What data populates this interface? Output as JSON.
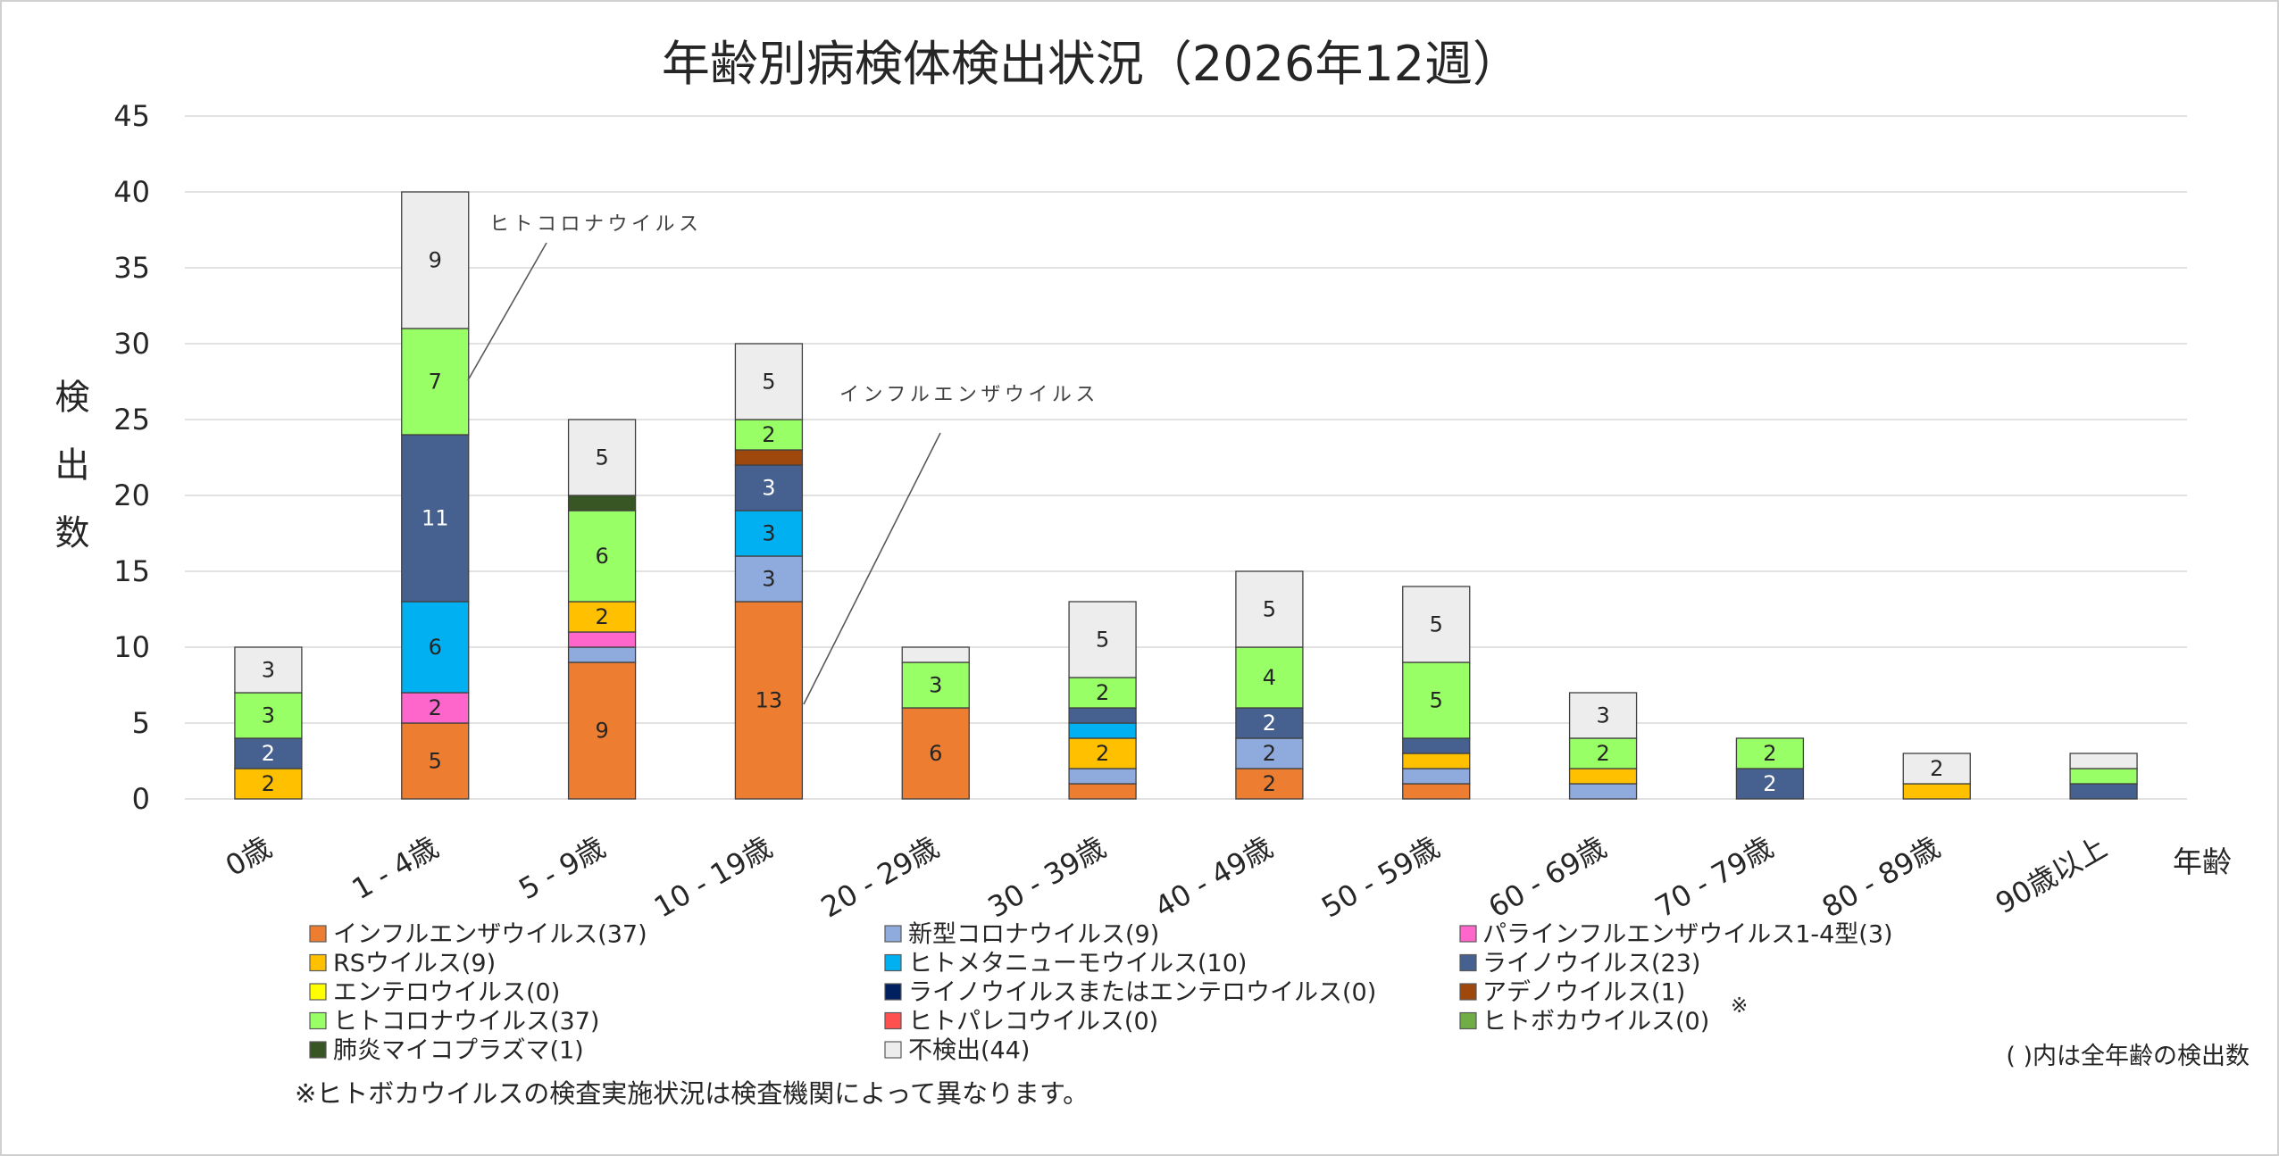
{
  "chart_data": {
    "type": "bar",
    "stacked": true,
    "title": "年齢別病検体検出状況（2026年12週）",
    "xlabel": "年齢",
    "ylabel": "検出数",
    "ylim": [
      0,
      45
    ],
    "yticks": [
      0,
      5,
      10,
      15,
      20,
      25,
      30,
      35,
      40,
      45
    ],
    "grid": true,
    "legend_position": "bottom",
    "categories": [
      "0歳",
      "1 - 4歳",
      "5 - 9歳",
      "10 - 19歳",
      "20 - 29歳",
      "30 - 39歳",
      "40 - 49歳",
      "50 - 59歳",
      "60 - 69歳",
      "70 - 79歳",
      "80 - 89歳",
      "90歳以上"
    ],
    "series": [
      {
        "name": "インフルエンザウイルス(37)",
        "color": "#ED7D31",
        "values": [
          0,
          5,
          9,
          13,
          6,
          1,
          2,
          1,
          0,
          0,
          0,
          0
        ]
      },
      {
        "name": "新型コロナウイルス(9)",
        "color": "#8FAADC",
        "values": [
          0,
          0,
          1,
          3,
          0,
          1,
          2,
          1,
          1,
          0,
          0,
          0
        ]
      },
      {
        "name": "パラインフルエンザウイルス1-4型(3)",
        "color": "#FF66CC",
        "values": [
          0,
          2,
          1,
          0,
          0,
          0,
          0,
          0,
          0,
          0,
          0,
          0
        ]
      },
      {
        "name": "RSウイルス(9)",
        "color": "#FFC000",
        "values": [
          2,
          0,
          2,
          0,
          0,
          2,
          0,
          1,
          1,
          0,
          1,
          0
        ]
      },
      {
        "name": "ヒトメタニューモウイルス(10)",
        "color": "#00B0F0",
        "values": [
          0,
          6,
          0,
          3,
          0,
          1,
          0,
          0,
          0,
          0,
          0,
          0
        ]
      },
      {
        "name": "ライノウイルス(23)",
        "color": "#46608F",
        "values": [
          2,
          11,
          0,
          3,
          0,
          1,
          2,
          1,
          0,
          2,
          0,
          1
        ]
      },
      {
        "name": "エンテロウイルス(0)",
        "color": "#FFFF00",
        "values": [
          0,
          0,
          0,
          0,
          0,
          0,
          0,
          0,
          0,
          0,
          0,
          0
        ]
      },
      {
        "name": "ライノウイルスまたはエンテロウイルス(0)",
        "color": "#002060",
        "values": [
          0,
          0,
          0,
          0,
          0,
          0,
          0,
          0,
          0,
          0,
          0,
          0
        ]
      },
      {
        "name": "アデノウイルス(1)",
        "color": "#9E480E",
        "values": [
          0,
          0,
          0,
          1,
          0,
          0,
          0,
          0,
          0,
          0,
          0,
          0
        ]
      },
      {
        "name": "ヒトコロナウイルス(37)",
        "color": "#99FF66",
        "values": [
          3,
          7,
          6,
          2,
          3,
          2,
          4,
          5,
          2,
          2,
          0,
          1
        ]
      },
      {
        "name": "ヒトパレコウイルス(0)",
        "color": "#FF5050",
        "values": [
          0,
          0,
          0,
          0,
          0,
          0,
          0,
          0,
          0,
          0,
          0,
          0
        ]
      },
      {
        "name": "ヒトボカウイルス(0)",
        "color": "#70AD47",
        "values": [
          0,
          0,
          0,
          0,
          0,
          0,
          0,
          0,
          0,
          0,
          0,
          0
        ]
      },
      {
        "name": "肺炎マイコプラズマ(1)",
        "color": "#375623",
        "values": [
          0,
          0,
          1,
          0,
          0,
          0,
          0,
          0,
          0,
          0,
          0,
          0
        ]
      },
      {
        "name": "不検出(44)",
        "color": "#EDEDED",
        "values": [
          3,
          9,
          5,
          5,
          1,
          5,
          5,
          5,
          3,
          0,
          2,
          1
        ]
      }
    ],
    "annotations": [
      {
        "text": "ヒトコロナウイルス"
      },
      {
        "text": "インフルエンザウイルス"
      }
    ]
  },
  "notes": {
    "legend_note": "( )内は全年齢の検出数",
    "legend_mark": "※",
    "footnote": "※ヒトボカウイルスの検査実施状況は検査機関によって異なります。"
  }
}
